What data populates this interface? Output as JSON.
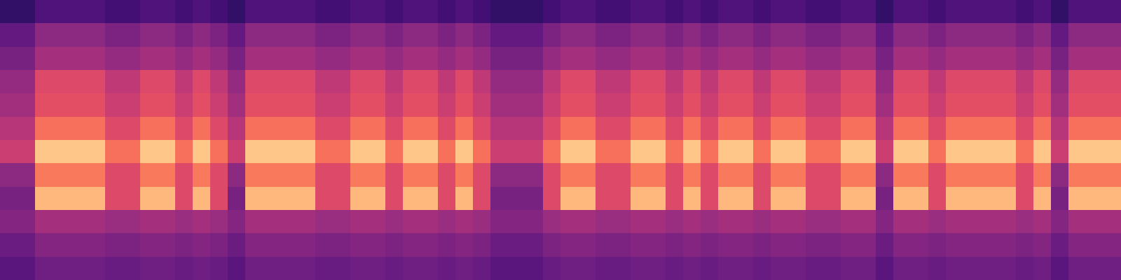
{
  "chart_data": {
    "type": "heatmap",
    "color": "magma",
    "color_range": [
      0,
      100
    ],
    "tick_labels": false,
    "cells": [
      [
        18,
        18,
        25,
        25,
        25,
        25,
        22,
        22,
        25,
        25,
        22,
        25,
        22,
        18,
        25,
        25,
        25,
        25,
        22,
        22,
        25,
        25,
        22,
        25,
        25,
        22,
        25,
        22,
        18,
        18,
        18,
        22,
        25,
        25,
        22,
        22,
        25,
        25,
        22,
        25,
        22,
        25,
        25,
        22,
        25,
        25,
        22,
        22,
        25,
        25,
        18,
        25,
        25,
        22,
        25,
        25,
        25,
        25,
        22,
        25,
        18,
        25,
        25,
        25
      ],
      [
        30,
        30,
        40,
        40,
        40,
        40,
        36,
        36,
        40,
        40,
        36,
        40,
        36,
        30,
        40,
        40,
        40,
        40,
        36,
        36,
        40,
        40,
        36,
        40,
        40,
        36,
        40,
        36,
        30,
        30,
        30,
        36,
        40,
        40,
        36,
        36,
        40,
        40,
        36,
        40,
        36,
        40,
        40,
        36,
        40,
        40,
        36,
        36,
        40,
        40,
        30,
        40,
        40,
        36,
        40,
        40,
        40,
        40,
        36,
        40,
        30,
        40,
        40,
        40
      ],
      [
        35,
        35,
        46,
        46,
        46,
        46,
        42,
        42,
        46,
        46,
        42,
        46,
        42,
        35,
        46,
        46,
        46,
        46,
        42,
        42,
        46,
        46,
        42,
        46,
        46,
        42,
        46,
        42,
        35,
        35,
        35,
        42,
        46,
        46,
        42,
        42,
        46,
        46,
        42,
        46,
        42,
        46,
        46,
        42,
        46,
        46,
        42,
        42,
        46,
        46,
        35,
        46,
        46,
        42,
        46,
        46,
        46,
        46,
        42,
        46,
        35,
        46,
        46,
        46
      ],
      [
        42,
        42,
        60,
        60,
        60,
        60,
        52,
        52,
        60,
        60,
        52,
        60,
        52,
        42,
        60,
        60,
        60,
        60,
        52,
        52,
        60,
        60,
        52,
        60,
        60,
        52,
        60,
        52,
        42,
        42,
        42,
        52,
        60,
        60,
        52,
        52,
        60,
        60,
        52,
        60,
        52,
        60,
        60,
        52,
        60,
        60,
        52,
        52,
        60,
        60,
        42,
        60,
        60,
        52,
        60,
        60,
        60,
        60,
        52,
        60,
        42,
        60,
        60,
        60
      ],
      [
        45,
        45,
        62,
        62,
        62,
        62,
        55,
        55,
        62,
        62,
        55,
        62,
        55,
        45,
        62,
        62,
        62,
        62,
        55,
        55,
        62,
        62,
        55,
        62,
        62,
        55,
        62,
        55,
        45,
        45,
        45,
        55,
        62,
        62,
        55,
        55,
        62,
        62,
        55,
        62,
        55,
        62,
        62,
        55,
        62,
        62,
        55,
        55,
        62,
        62,
        45,
        62,
        62,
        55,
        62,
        62,
        62,
        62,
        55,
        62,
        45,
        62,
        62,
        62
      ],
      [
        50,
        50,
        70,
        70,
        70,
        70,
        60,
        60,
        70,
        70,
        60,
        70,
        60,
        50,
        70,
        70,
        70,
        70,
        60,
        60,
        70,
        70,
        60,
        70,
        70,
        60,
        70,
        60,
        50,
        50,
        50,
        60,
        70,
        70,
        60,
        60,
        70,
        70,
        60,
        70,
        60,
        70,
        70,
        60,
        70,
        70,
        60,
        60,
        70,
        70,
        50,
        70,
        70,
        60,
        70,
        70,
        70,
        70,
        60,
        70,
        50,
        70,
        70,
        70
      ],
      [
        55,
        55,
        88,
        88,
        88,
        88,
        70,
        70,
        88,
        88,
        70,
        88,
        70,
        55,
        88,
        88,
        88,
        88,
        70,
        70,
        88,
        88,
        70,
        88,
        88,
        70,
        88,
        70,
        55,
        55,
        55,
        70,
        88,
        88,
        70,
        70,
        88,
        88,
        70,
        88,
        70,
        88,
        88,
        70,
        88,
        88,
        70,
        70,
        88,
        88,
        55,
        88,
        88,
        70,
        88,
        88,
        88,
        88,
        70,
        88,
        55,
        88,
        88,
        88
      ],
      [
        40,
        40,
        72,
        72,
        72,
        72,
        60,
        60,
        72,
        72,
        60,
        72,
        60,
        40,
        72,
        72,
        72,
        72,
        60,
        60,
        72,
        72,
        60,
        72,
        72,
        60,
        72,
        60,
        40,
        40,
        40,
        60,
        72,
        72,
        60,
        60,
        72,
        72,
        60,
        72,
        60,
        72,
        72,
        60,
        72,
        72,
        60,
        60,
        72,
        72,
        40,
        72,
        72,
        60,
        72,
        72,
        72,
        72,
        60,
        72,
        40,
        72,
        72,
        72
      ],
      [
        35,
        35,
        85,
        85,
        85,
        85,
        60,
        60,
        85,
        85,
        60,
        85,
        60,
        35,
        85,
        85,
        85,
        85,
        60,
        60,
        85,
        85,
        60,
        85,
        85,
        60,
        85,
        60,
        35,
        35,
        35,
        60,
        85,
        85,
        60,
        60,
        85,
        85,
        60,
        85,
        60,
        85,
        85,
        60,
        85,
        85,
        60,
        60,
        85,
        85,
        35,
        85,
        85,
        60,
        85,
        85,
        85,
        85,
        60,
        85,
        35,
        85,
        85,
        85
      ],
      [
        38,
        38,
        46,
        46,
        46,
        46,
        43,
        43,
        46,
        46,
        43,
        46,
        43,
        38,
        46,
        46,
        46,
        46,
        43,
        43,
        46,
        46,
        43,
        46,
        46,
        43,
        46,
        43,
        38,
        38,
        38,
        43,
        46,
        46,
        43,
        43,
        46,
        46,
        43,
        46,
        43,
        46,
        46,
        43,
        46,
        46,
        43,
        43,
        46,
        46,
        38,
        46,
        46,
        43,
        46,
        46,
        46,
        46,
        43,
        46,
        38,
        46,
        46,
        46
      ],
      [
        32,
        32,
        38,
        38,
        38,
        38,
        36,
        36,
        38,
        38,
        36,
        38,
        36,
        32,
        38,
        38,
        38,
        38,
        36,
        36,
        38,
        38,
        36,
        38,
        38,
        36,
        38,
        36,
        32,
        32,
        32,
        36,
        38,
        38,
        36,
        36,
        38,
        38,
        36,
        38,
        36,
        38,
        38,
        36,
        38,
        38,
        36,
        36,
        38,
        38,
        32,
        38,
        38,
        36,
        38,
        38,
        38,
        38,
        36,
        38,
        32,
        38,
        38,
        38
      ],
      [
        28,
        28,
        33,
        33,
        33,
        33,
        31,
        31,
        33,
        33,
        31,
        33,
        31,
        28,
        33,
        33,
        33,
        33,
        31,
        31,
        33,
        33,
        31,
        33,
        33,
        31,
        33,
        31,
        28,
        28,
        28,
        31,
        33,
        33,
        31,
        31,
        33,
        33,
        31,
        33,
        31,
        33,
        33,
        31,
        33,
        33,
        31,
        31,
        33,
        33,
        28,
        33,
        33,
        31,
        33,
        33,
        33,
        33,
        31,
        33,
        28,
        33,
        33,
        33
      ]
    ]
  }
}
